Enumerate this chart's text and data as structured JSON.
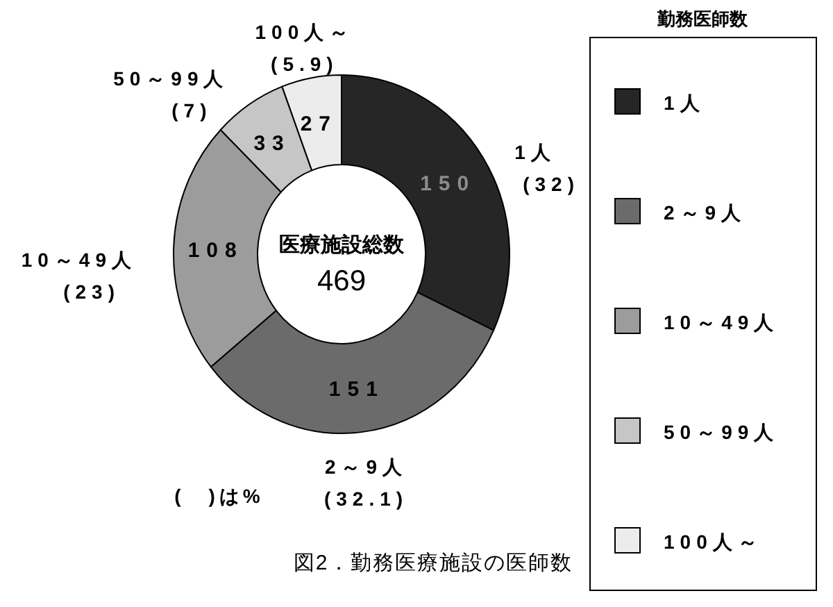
{
  "chart_data": {
    "type": "donut",
    "title": "図2．勤務医療施設の医師数",
    "categories": [
      "1人",
      "2～9人",
      "10～49人",
      "50～99人",
      "100人～"
    ],
    "values": [
      150,
      151,
      108,
      33,
      27
    ],
    "colors": [
      "#262626",
      "#6b6b6b",
      "#9c9c9c",
      "#c6c6c6",
      "#ececec"
    ],
    "data_labels": true,
    "legend": "right",
    "legend_title": "勤務医師数",
    "annotations": [
      "医療施設総数",
      "469",
      {
        "text": "(32)",
        "x": "1人"
      },
      {
        "text": "(32.1)",
        "x": "2～9人"
      },
      {
        "text": "(23)",
        "x": "10～49人"
      },
      {
        "text": "(7)",
        "x": "50～99人"
      },
      {
        "text": "(5.9)",
        "x": "100人～"
      },
      "(　)は%"
    ]
  }
}
